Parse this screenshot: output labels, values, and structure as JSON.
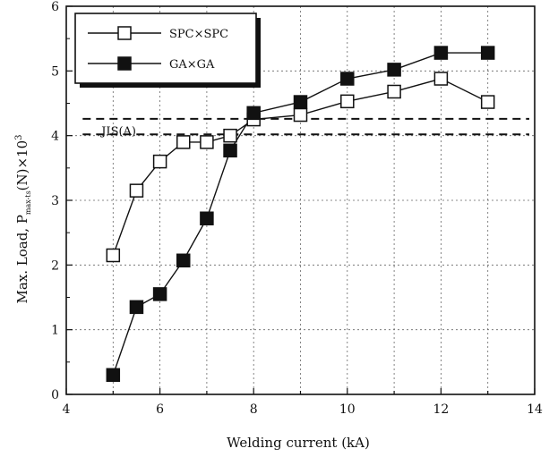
{
  "chart_data": {
    "type": "line",
    "xlabel": "Welding current (kA)",
    "ylabel": "Max. Load, P",
    "ylabel_sub": "max-ts",
    "ylabel_suffix": "(N)×10",
    "ylabel_exp": "3",
    "xlim": [
      4,
      14
    ],
    "ylim": [
      0,
      6
    ],
    "xticks": [
      4,
      6,
      8,
      10,
      12,
      14
    ],
    "yticks": [
      0,
      1,
      2,
      3,
      4,
      5,
      6
    ],
    "grid": true,
    "legend_position": "top-left",
    "series": [
      {
        "name": "SPC×SPC",
        "marker": "open-square",
        "x": [
          5,
          5.5,
          6,
          6.5,
          7,
          7.5,
          8,
          9,
          10,
          11,
          12,
          13
        ],
        "y": [
          2.15,
          3.15,
          3.6,
          3.9,
          3.9,
          4.0,
          4.25,
          4.32,
          4.53,
          4.68,
          4.88,
          4.52
        ]
      },
      {
        "name": "GA×GA",
        "marker": "filled-square",
        "x": [
          5,
          5.5,
          6,
          6.5,
          7,
          7.5,
          8,
          9,
          10,
          11,
          12,
          13
        ],
        "y": [
          0.3,
          1.35,
          1.55,
          2.07,
          2.72,
          3.77,
          4.35,
          4.52,
          4.88,
          5.02,
          5.28,
          5.28
        ]
      }
    ],
    "reference_lines": [
      {
        "label": "",
        "y": 4.26
      },
      {
        "label": "JIS(A)",
        "y": 4.02
      }
    ]
  }
}
